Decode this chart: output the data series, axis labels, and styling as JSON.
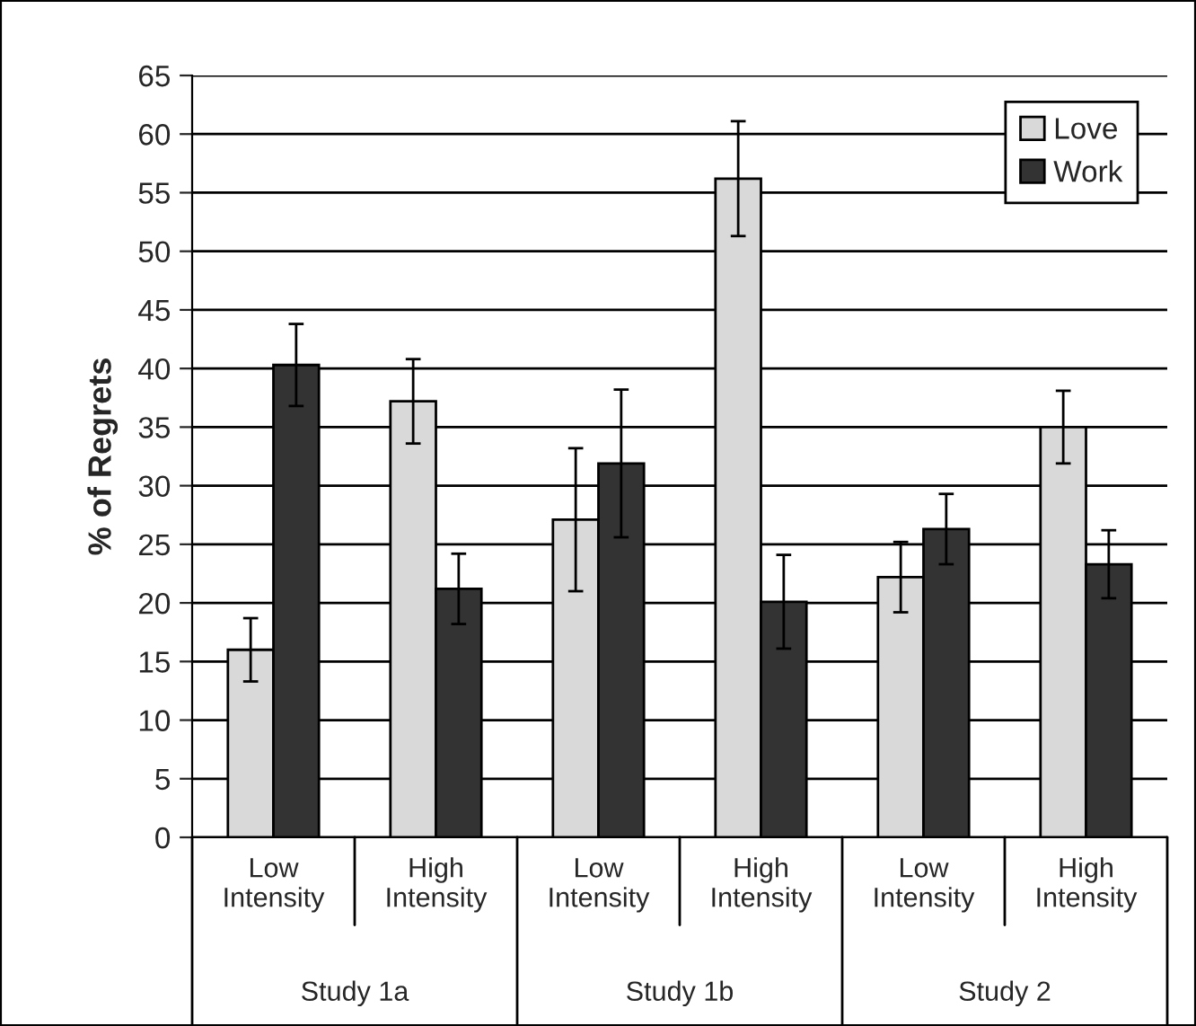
{
  "chart_data": {
    "type": "bar",
    "ylabel": "% of Regrets",
    "categories": [
      "Low Intensity",
      "High Intensity",
      "Low Intensity",
      "High Intensity",
      "Low Intensity",
      "High Intensity"
    ],
    "series": [
      {
        "name": "Love",
        "color": "#d9d9d9",
        "values": [
          16,
          37.2,
          27.1,
          56.2,
          22.2,
          35.0
        ],
        "errors": [
          2.7,
          3.6,
          6.1,
          4.9,
          3.0,
          3.1
        ]
      },
      {
        "name": "Work",
        "color": "#333333",
        "values": [
          40.3,
          21.2,
          31.9,
          20.1,
          26.3,
          23.3
        ],
        "errors": [
          3.5,
          3.0,
          6.3,
          4.0,
          3.0,
          2.9
        ]
      }
    ],
    "annotations": [
      "Study 1a",
      "Study 1b",
      "Study 2"
    ],
    "ylim": [
      0,
      65
    ],
    "yticks": [
      0,
      5,
      10,
      15,
      20,
      25,
      30,
      35,
      40,
      45,
      50,
      55,
      60,
      65
    ],
    "grid": "y",
    "legend": "top right"
  }
}
